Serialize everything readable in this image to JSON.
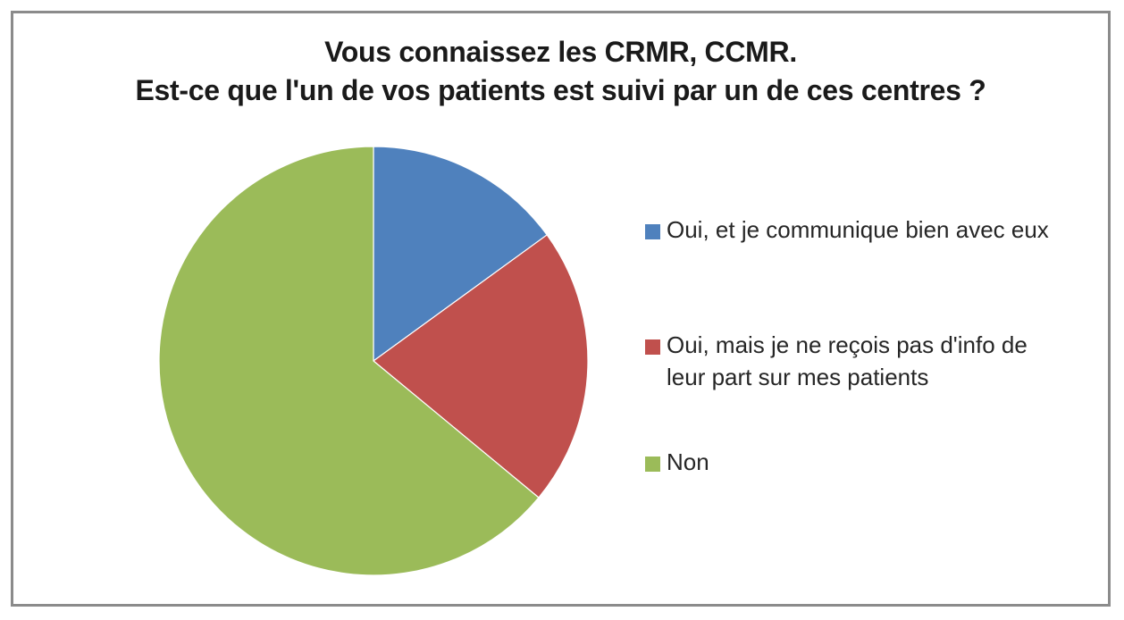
{
  "page": {
    "background": "#ffffff",
    "frame_border_color": "#8b8b8b"
  },
  "title": {
    "line1": "Vous connaissez les CRMR, CCMR.",
    "line2": "Est-ce que l'un de vos patients est suivi par un de ces centres ?",
    "color": "#1a1a1a"
  },
  "chart_data": {
    "type": "pie",
    "title": "Vous connaissez les CRMR, CCMR. Est-ce que l'un de vos patients est suivi par un de ces centres ?",
    "legend_position": "right",
    "start_angle_deg": 0,
    "direction": "clockwise",
    "unit": "percent (estimated from slice angles; no numeric labels shown)",
    "slices": [
      {
        "label": "Oui, et je communique bien avec eux",
        "value": 15,
        "color": "#4F81BD"
      },
      {
        "label": "Oui, mais je ne reçois pas d'info de leur part sur mes patients",
        "value": 21,
        "color": "#C0504D"
      },
      {
        "label": "Non",
        "value": 64,
        "color": "#9BBB59"
      }
    ]
  }
}
